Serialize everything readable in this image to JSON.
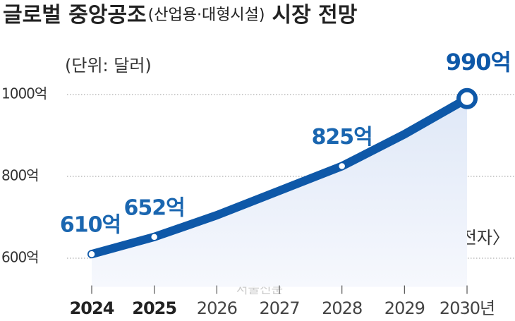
{
  "chart_data": {
    "type": "line",
    "title": "글로벌 중앙공조",
    "title_note": "(산업용·대형시설)",
    "title_end": "시장 전망",
    "unit": "(단위: 달러)",
    "source": "〈자료: 삼성전자〉",
    "watermark": "서울신문",
    "categories": [
      "2024",
      "2025",
      "2026",
      "2027",
      "2028",
      "2029",
      "2030년"
    ],
    "bold_categories": [
      true,
      true,
      false,
      false,
      false,
      false,
      false
    ],
    "values": [
      610,
      652,
      705,
      765,
      825,
      903,
      990
    ],
    "value_labels": [
      "610억",
      "652억",
      null,
      null,
      "825억",
      null,
      "990억"
    ],
    "color": "#0e58a8",
    "ylim": [
      530,
      1060
    ],
    "yticks": [
      {
        "value": 600,
        "label": "600억"
      },
      {
        "value": 800,
        "label": "800억"
      },
      {
        "value": 1000,
        "label": "1000억"
      }
    ],
    "grid": true
  }
}
